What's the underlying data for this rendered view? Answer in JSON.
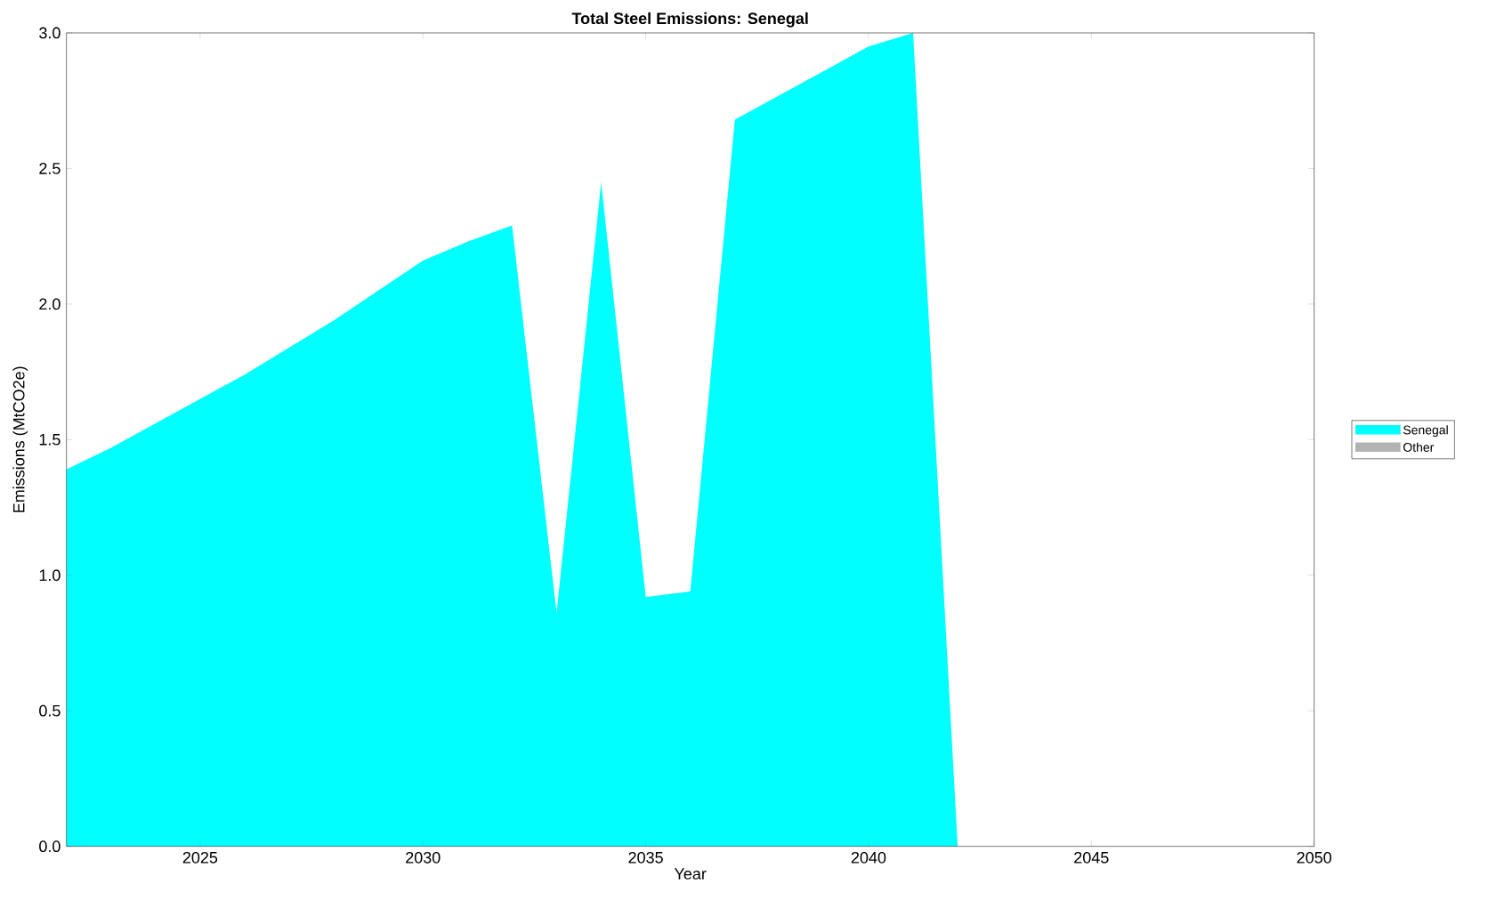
{
  "chart_data": {
    "type": "area",
    "title": "Total Steel Emissions: Senegal",
    "xlabel": "Year",
    "ylabel": "Emissions (MtCO2e)",
    "x": [
      2022,
      2023,
      2024,
      2025,
      2026,
      2027,
      2028,
      2029,
      2030,
      2031,
      2032,
      2033,
      2034,
      2035,
      2036,
      2037,
      2038,
      2039,
      2040,
      2041,
      2042,
      2043,
      2044,
      2045,
      2046,
      2047,
      2048,
      2049,
      2050
    ],
    "series": [
      {
        "name": "Senegal",
        "color": "#00ffff",
        "values": [
          1.39,
          1.47,
          1.56,
          1.65,
          1.74,
          1.84,
          1.94,
          2.05,
          2.16,
          2.23,
          2.29,
          0.86,
          2.45,
          0.92,
          0.94,
          2.68,
          2.77,
          2.86,
          2.95,
          3.0,
          0,
          0,
          0,
          0,
          0,
          0,
          0,
          0,
          0
        ]
      },
      {
        "name": "Other",
        "color": "#b3b3b3",
        "values": [
          null,
          null,
          null,
          null,
          null,
          null,
          null,
          null,
          null,
          null,
          null,
          null,
          null,
          null,
          null,
          null,
          null,
          null,
          null,
          null,
          null,
          null,
          null,
          null,
          null,
          null,
          null,
          null,
          null
        ]
      }
    ],
    "xlim": [
      2022,
      2050
    ],
    "ylim": [
      0,
      3.0
    ],
    "xticks": [
      2025,
      2030,
      2035,
      2040,
      2045,
      2050
    ],
    "yticks": [
      {
        "value": 0,
        "label": "0.0"
      },
      0.5,
      {
        "value": 1,
        "label": "1.0"
      },
      1.5,
      {
        "value": 2,
        "label": "2.0"
      },
      2.5,
      {
        "value": 3,
        "label": "3.0"
      }
    ],
    "legend": "right"
  }
}
